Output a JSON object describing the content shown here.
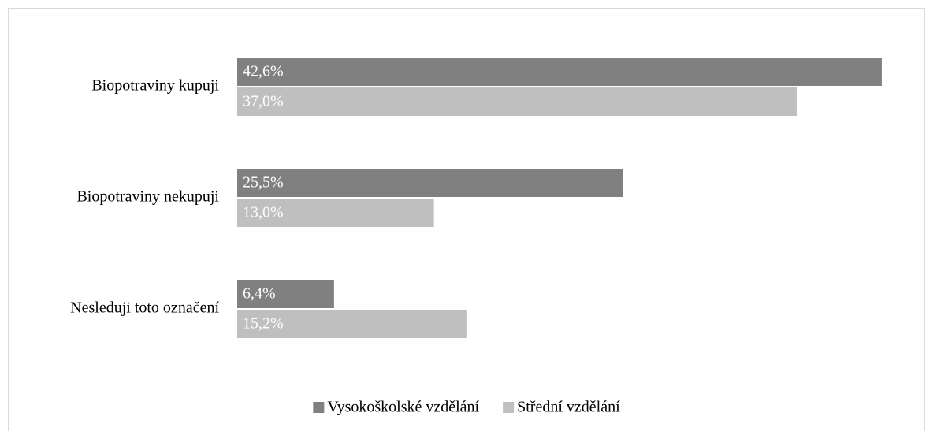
{
  "chart_data": {
    "type": "bar",
    "orientation": "horizontal",
    "categories": [
      "Biopotraviny kupuji",
      "Biopotraviny nekupuji",
      "Nesleduji toto označení"
    ],
    "series": [
      {
        "name": "Vysokoškolské vzdělání",
        "color": "#808080",
        "values": [
          42.6,
          25.5,
          6.4
        ],
        "value_labels": [
          "42,6%",
          "25,5%",
          "6,4%"
        ]
      },
      {
        "name": "Střední vzdělání",
        "color": "#bfbfbf",
        "values": [
          37.0,
          13.0,
          15.2
        ],
        "value_labels": [
          "37,0%",
          "13,0%",
          "15,2%"
        ]
      }
    ],
    "xlim": [
      0,
      45
    ],
    "legend": "bottom"
  }
}
